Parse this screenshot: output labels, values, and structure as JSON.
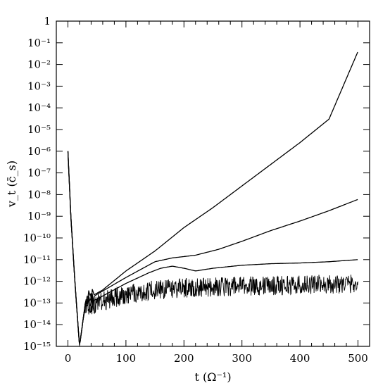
{
  "chart_data": {
    "type": "line",
    "title": "",
    "xlabel": "t (Ω⁻¹)",
    "ylabel": "v_t (c̄_s)",
    "xlim": [
      -20,
      520
    ],
    "ylim": [
      1e-15,
      1
    ],
    "yscale": "log",
    "grid": false,
    "legend": "none",
    "x_ticks": [
      0,
      100,
      200,
      300,
      400,
      500
    ],
    "x_tick_labels": [
      "0",
      "100",
      "200",
      "300",
      "400",
      "500"
    ],
    "y_tick_labels": [
      "1",
      "10⁻¹",
      "10⁻²",
      "10⁻³",
      "10⁻⁴",
      "10⁻⁵",
      "10⁻⁶",
      "10⁻⁷",
      "10⁻⁸",
      "10⁻⁹",
      "10⁻¹⁰",
      "10⁻¹¹",
      "10⁻¹²",
      "10⁻¹³",
      "10⁻¹⁴",
      "10⁻¹⁵"
    ],
    "series": [
      {
        "x": [
          0,
          5,
          12,
          20,
          25,
          30,
          40,
          60,
          100,
          150,
          200,
          250,
          300,
          350,
          400,
          450,
          500
        ],
        "y": [
          1e-06,
          1e-09,
          1e-12,
          1e-15,
          1e-14,
          1e-13,
          2e-13,
          4e-13,
          3e-12,
          2.5e-11,
          3e-10,
          2.5e-09,
          2.5e-08,
          2.5e-07,
          2.5e-06,
          3e-05,
          0.04
        ]
      },
      {
        "x": [
          0,
          5,
          12,
          20,
          25,
          30,
          50,
          100,
          150,
          180,
          220,
          260,
          300,
          350,
          400,
          450,
          500
        ],
        "y": [
          1e-06,
          1e-09,
          1e-12,
          1e-15,
          1e-14,
          1e-13,
          2.5e-13,
          1.5e-12,
          8e-12,
          1.2e-11,
          1.6e-11,
          3e-11,
          7e-11,
          2.2e-10,
          6e-10,
          1.8e-09,
          6e-09
        ]
      },
      {
        "x": [
          0,
          5,
          12,
          20,
          25,
          30,
          50,
          100,
          140,
          160,
          180,
          200,
          220,
          250,
          300,
          350,
          400,
          450,
          500
        ],
        "y": [
          1e-06,
          1e-09,
          1e-12,
          1e-15,
          1e-14,
          1e-13,
          1.5e-13,
          8e-13,
          2.5e-12,
          4e-12,
          5e-12,
          4e-12,
          3e-12,
          4e-12,
          5.5e-12,
          6.5e-12,
          7e-12,
          8e-12,
          1e-11
        ]
      },
      {
        "x": [
          0,
          5,
          12,
          20,
          25,
          30,
          50,
          100,
          150,
          200,
          300,
          400,
          500
        ],
        "y": [
          1e-06,
          1e-09,
          1e-12,
          1e-15,
          1e-14,
          6e-14,
          1e-13,
          2.5e-13,
          4e-13,
          5e-13,
          6e-13,
          7e-13,
          8e-13
        ],
        "noise_decades": 0.45
      }
    ]
  }
}
